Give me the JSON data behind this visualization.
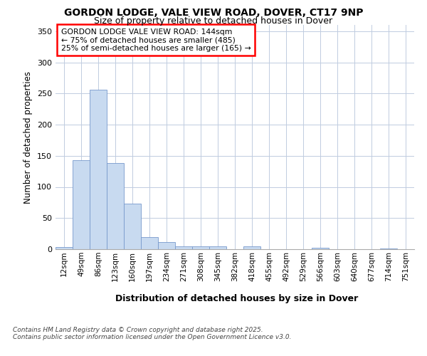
{
  "title_line1": "GORDON LODGE, VALE VIEW ROAD, DOVER, CT17 9NP",
  "title_line2": "Size of property relative to detached houses in Dover",
  "xlabel": "Distribution of detached houses by size in Dover",
  "ylabel": "Number of detached properties",
  "categories": [
    "12sqm",
    "49sqm",
    "86sqm",
    "123sqm",
    "160sqm",
    "197sqm",
    "234sqm",
    "271sqm",
    "308sqm",
    "345sqm",
    "382sqm",
    "418sqm",
    "455sqm",
    "492sqm",
    "529sqm",
    "566sqm",
    "603sqm",
    "640sqm",
    "677sqm",
    "714sqm",
    "751sqm"
  ],
  "values": [
    4,
    143,
    256,
    138,
    73,
    19,
    11,
    5,
    5,
    5,
    0,
    5,
    0,
    0,
    0,
    2,
    0,
    0,
    0,
    1,
    0
  ],
  "bar_color": "#c8daf0",
  "bar_edge_color": "#7799cc",
  "annotation_title": "GORDON LODGE VALE VIEW ROAD: 144sqm",
  "annotation_line2": "← 75% of detached houses are smaller (485)",
  "annotation_line3": "25% of semi-detached houses are larger (165) →",
  "background_color": "#ffffff",
  "grid_color": "#c0cce0",
  "footer_line1": "Contains HM Land Registry data © Crown copyright and database right 2025.",
  "footer_line2": "Contains public sector information licensed under the Open Government Licence v3.0.",
  "ylim": [
    0,
    360
  ],
  "yticks": [
    0,
    50,
    100,
    150,
    200,
    250,
    300,
    350
  ]
}
